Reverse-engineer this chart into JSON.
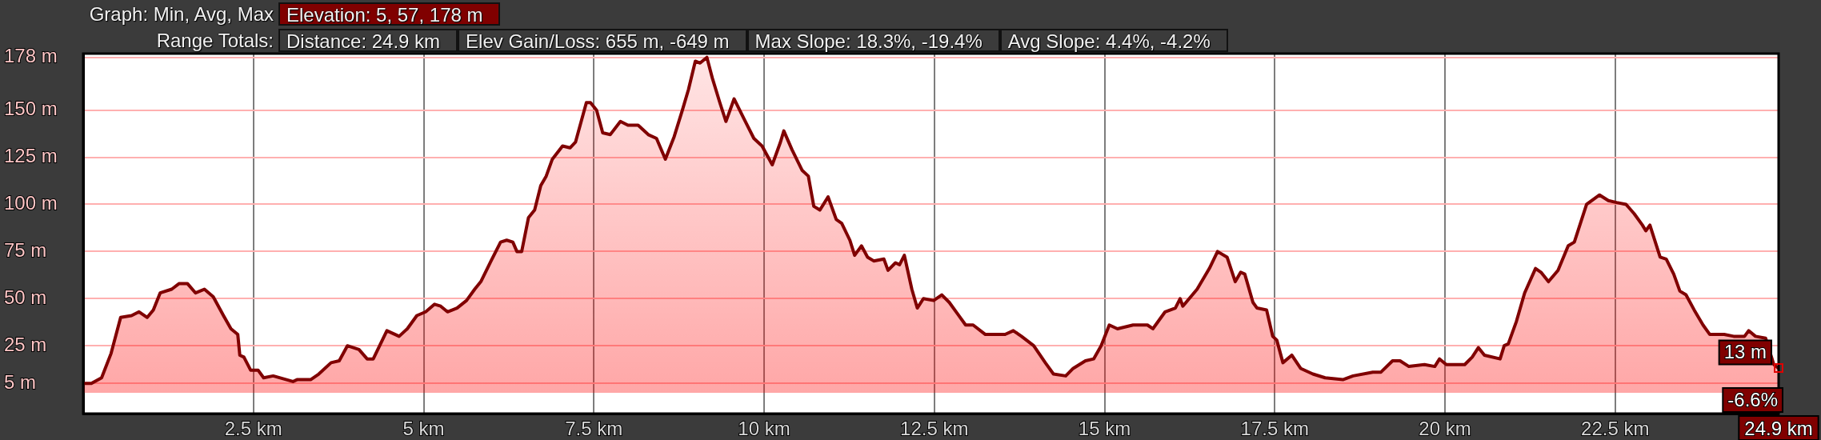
{
  "chart_data": {
    "type": "area",
    "title": "Graph: Min, Avg, Max",
    "subtitle": "Range Totals:",
    "x": [
      0,
      0.12,
      0.27,
      0.41,
      0.55,
      0.71,
      0.82,
      0.94,
      1.03,
      1.13,
      1.3,
      1.41,
      1.53,
      1.65,
      1.78,
      1.91,
      2.06,
      2.17,
      2.27,
      2.3,
      2.36,
      2.46,
      2.57,
      2.65,
      2.79,
      3.08,
      3.14,
      3.34,
      3.46,
      3.64,
      3.76,
      3.88,
      4.05,
      4.17,
      4.26,
      4.46,
      4.64,
      4.76,
      4.9,
      5.03,
      5.16,
      5.25,
      5.35,
      5.49,
      5.63,
      5.75,
      5.84,
      5.99,
      6.13,
      6.22,
      6.31,
      6.37,
      6.44,
      6.54,
      6.63,
      6.72,
      6.8,
      6.89,
      7.04,
      7.15,
      7.23,
      7.39,
      7.45,
      7.54,
      7.63,
      7.74,
      7.89,
      8.0,
      8.15,
      8.3,
      8.42,
      8.55,
      8.68,
      8.8,
      8.89,
      8.99,
      9.06,
      9.16,
      9.24,
      9.35,
      9.44,
      9.56,
      9.71,
      9.85,
      9.97,
      10.12,
      10.24,
      10.29,
      10.41,
      10.56,
      10.65,
      10.73,
      10.82,
      10.94,
      11.06,
      11.14,
      11.26,
      11.33,
      11.43,
      11.52,
      11.61,
      11.76,
      11.82,
      11.93,
      11.99,
      12.06,
      12.17,
      12.25,
      12.34,
      12.49,
      12.61,
      12.72,
      12.84,
      12.96,
      13.07,
      13.25,
      13.37,
      13.54,
      13.66,
      13.78,
      13.96,
      14.13,
      14.25,
      14.43,
      14.54,
      14.72,
      14.84,
      14.95,
      15.07,
      15.19,
      15.42,
      15.63,
      15.71,
      15.89,
      16.04,
      16.11,
      16.15,
      16.36,
      16.54,
      16.66,
      16.8,
      16.92,
      17.0,
      17.06,
      17.18,
      17.24,
      17.38,
      17.47,
      17.53,
      17.62,
      17.75,
      17.88,
      18.06,
      18.24,
      18.5,
      18.65,
      18.94,
      19.06,
      19.23,
      19.34,
      19.47,
      19.7,
      19.85,
      19.92,
      20.02,
      20.29,
      20.4,
      20.49,
      20.58,
      20.81,
      20.87,
      20.93,
      21.05,
      21.17,
      21.33,
      21.41,
      21.52,
      21.66,
      21.81,
      21.9,
      22.08,
      22.27,
      22.4,
      22.52,
      22.66,
      22.78,
      22.9,
      22.95,
      23.01,
      23.16,
      23.25,
      23.36,
      23.45,
      23.54,
      23.66,
      23.79,
      23.89,
      23.98,
      24.1,
      24.24,
      24.4,
      24.46,
      24.56,
      24.71,
      24.83,
      24.9
    ],
    "series": [
      {
        "name": "Elevation: 5, 57, 178 m",
        "color": "#800000",
        "values": [
          5,
          5,
          8,
          21,
          40,
          41,
          43,
          40,
          44,
          53,
          55,
          58,
          58,
          53,
          55,
          51,
          41,
          34,
          31,
          20,
          19,
          12,
          12,
          8,
          9,
          6,
          7,
          7,
          10,
          16,
          17,
          25,
          23,
          18,
          18,
          33,
          30,
          34,
          41,
          43,
          47,
          46,
          43,
          45,
          49,
          55,
          59,
          70,
          80,
          81,
          80,
          75,
          75,
          93,
          97,
          110,
          115,
          124,
          131,
          130,
          133,
          154,
          154,
          150,
          138,
          137,
          144,
          142,
          142,
          137,
          135,
          124,
          136,
          150,
          161,
          176,
          175,
          178,
          167,
          154,
          144,
          156,
          145,
          135,
          131,
          121,
          133,
          139,
          129,
          118,
          115,
          99,
          97,
          104,
          92,
          90,
          81,
          73,
          78,
          72,
          70,
          71,
          65,
          69,
          68,
          73,
          55,
          45,
          50,
          49,
          52,
          48,
          42,
          36,
          36,
          31,
          31,
          31,
          33,
          30,
          25,
          16,
          10,
          9,
          13,
          17,
          18,
          25,
          36,
          34,
          36,
          36,
          34,
          43,
          45,
          50,
          46,
          55,
          66,
          75,
          72,
          59,
          64,
          63,
          48,
          45,
          44,
          30,
          28,
          16,
          20,
          13,
          10,
          8,
          7,
          9,
          11,
          11,
          17,
          17,
          14,
          15,
          14,
          18,
          15,
          15,
          19,
          24,
          20,
          18,
          25,
          26,
          38,
          53,
          66,
          64,
          59,
          65,
          78,
          80,
          100,
          105,
          102,
          101,
          100,
          95,
          89,
          86,
          89,
          72,
          71,
          63,
          54,
          52,
          44,
          36,
          31,
          31,
          31,
          30,
          30,
          33,
          30,
          29,
          15,
          13
        ]
      }
    ],
    "xlim": [
      0,
      24.9
    ],
    "xticks": [
      {
        "value": 2.5,
        "label": "2.5 km"
      },
      {
        "value": 5,
        "label": "5 km"
      },
      {
        "value": 7.5,
        "label": "7.5 km"
      },
      {
        "value": 10,
        "label": "10 km"
      },
      {
        "value": 12.5,
        "label": "12.5 km"
      },
      {
        "value": 15,
        "label": "15 km"
      },
      {
        "value": 17.5,
        "label": "17.5 km"
      },
      {
        "value": 20,
        "label": "20 km"
      },
      {
        "value": 22.5,
        "label": "22.5 km"
      },
      {
        "value": 24.9,
        "label": "24.9 km"
      }
    ],
    "ylim": [
      -11,
      180
    ],
    "yticks": [
      {
        "value": 5,
        "label": "5 m"
      },
      {
        "value": 25,
        "label": "25 m"
      },
      {
        "value": 50,
        "label": "50 m"
      },
      {
        "value": 75,
        "label": "75 m"
      },
      {
        "value": 100,
        "label": "100 m"
      },
      {
        "value": 125,
        "label": "125 m"
      },
      {
        "value": 150,
        "label": "150 m"
      },
      {
        "value": 178,
        "label": "178 m"
      }
    ],
    "grid": true,
    "legend": "top left",
    "annotations": [
      "Distance: 24.9 km",
      "Elev Gain/Loss: 655 m, -649 m",
      "Max Slope: 18.3%, -19.4%",
      "Avg Slope: 4.4%, -4.2%",
      {
        "text": "13 m",
        "x": 24.9,
        "y": 13
      },
      {
        "text": "-6.6%",
        "x": 24.9,
        "y": 13
      }
    ]
  }
}
